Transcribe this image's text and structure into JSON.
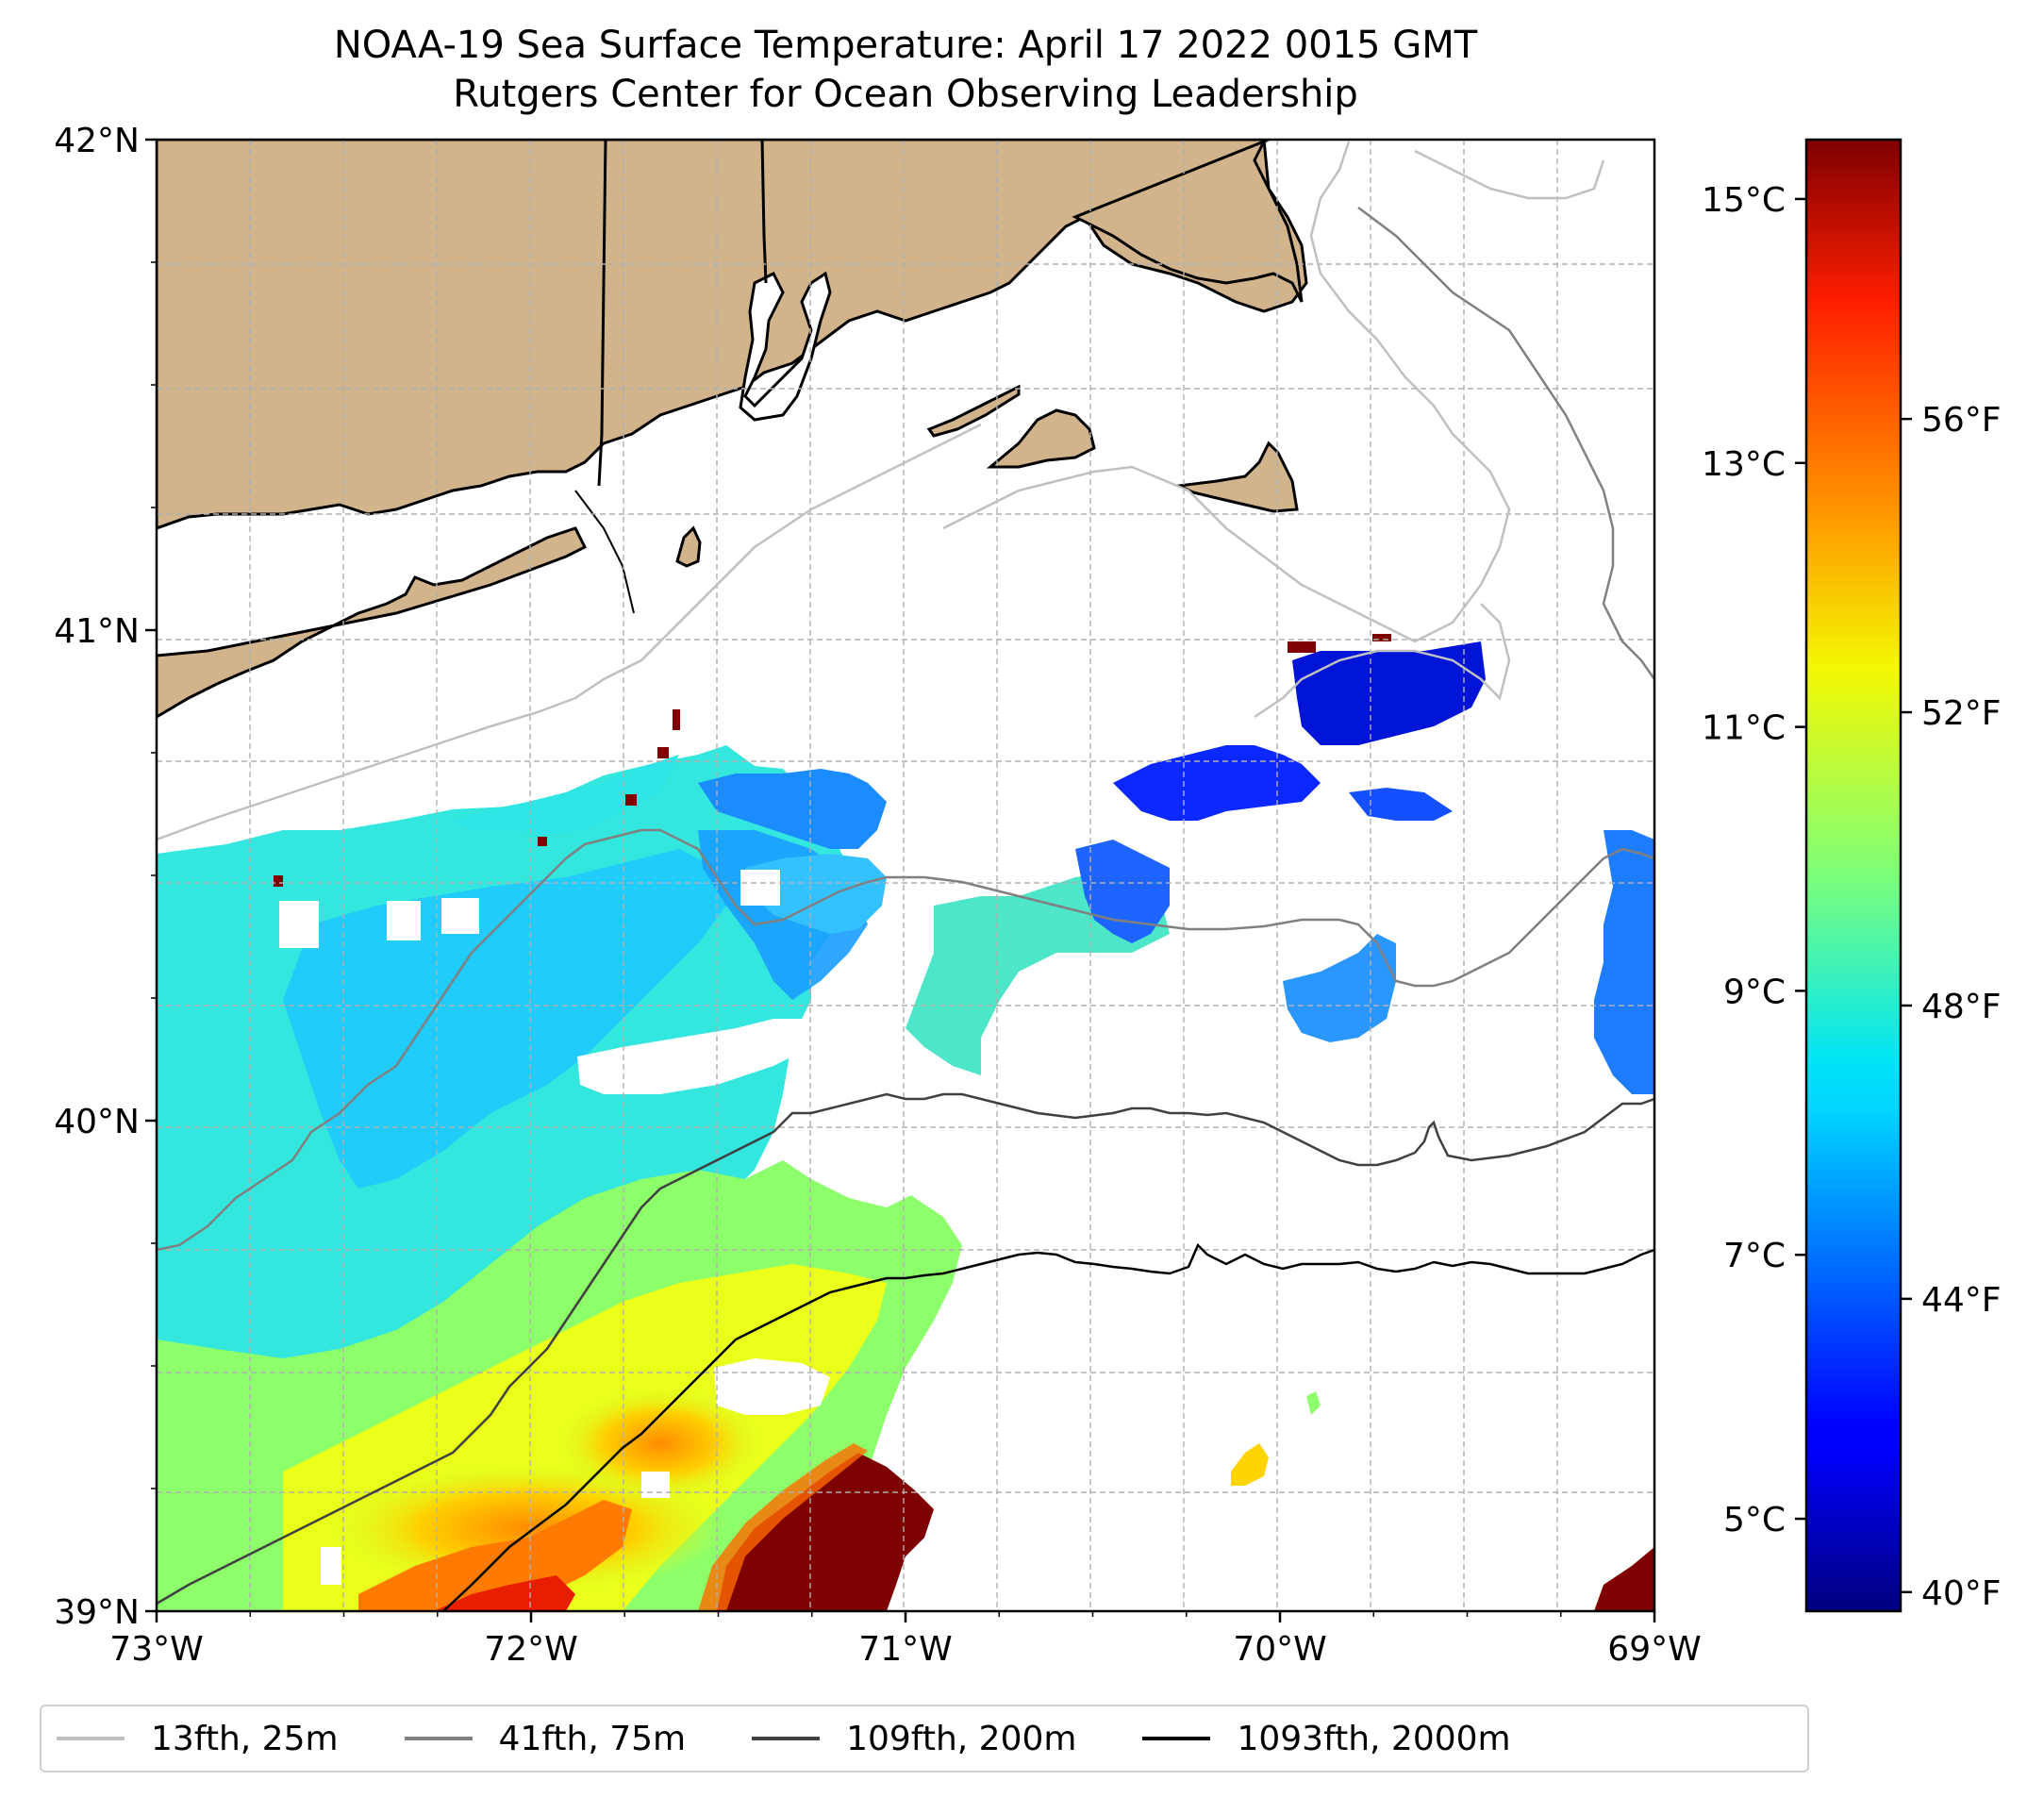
{
  "title": {
    "line1": "NOAA-19 Sea Surface Temperature: April 17 2022 0015 GMT",
    "line2": "Rutgers Center for Ocean Observing Leadership"
  },
  "map": {
    "lon_range": [
      -73,
      -69
    ],
    "lat_range": [
      39,
      42
    ],
    "lat_ticks": [
      {
        "value": 42,
        "label": "42°N"
      },
      {
        "value": 41,
        "label": "41°N"
      },
      {
        "value": 40,
        "label": "40°N"
      },
      {
        "value": 39,
        "label": "39°N"
      }
    ],
    "lon_ticks": [
      {
        "value": -73,
        "label": "73°W"
      },
      {
        "value": -72,
        "label": "72°W"
      },
      {
        "value": -71,
        "label": "71°W"
      },
      {
        "value": -70,
        "label": "70°W"
      },
      {
        "value": -69,
        "label": "69°W"
      }
    ],
    "land_color": "#d2b48c",
    "gridlines": "dashed"
  },
  "colorbar": {
    "celsius_ticks": [
      {
        "value": 15,
        "label": "15°C"
      },
      {
        "value": 13,
        "label": "13°C"
      },
      {
        "value": 11,
        "label": "11°C"
      },
      {
        "value": 9,
        "label": "9°C"
      },
      {
        "value": 7,
        "label": "7°C"
      },
      {
        "value": 5,
        "label": "5°C"
      }
    ],
    "fahrenheit_ticks": [
      {
        "value": 56,
        "label": "56°F"
      },
      {
        "value": 52,
        "label": "52°F"
      },
      {
        "value": 48,
        "label": "48°F"
      },
      {
        "value": 44,
        "label": "44°F"
      },
      {
        "value": 40,
        "label": "40°F"
      }
    ],
    "range_c": [
      4.3,
      15.45
    ],
    "colormap": "jet"
  },
  "legend": [
    {
      "label": "13fth, 25m",
      "color": "#c0c0c0"
    },
    {
      "label": "41fth, 75m",
      "color": "#808080"
    },
    {
      "label": "109fth, 200m",
      "color": "#404040"
    },
    {
      "label": "1093fth, 2000m",
      "color": "#000000"
    }
  ]
}
